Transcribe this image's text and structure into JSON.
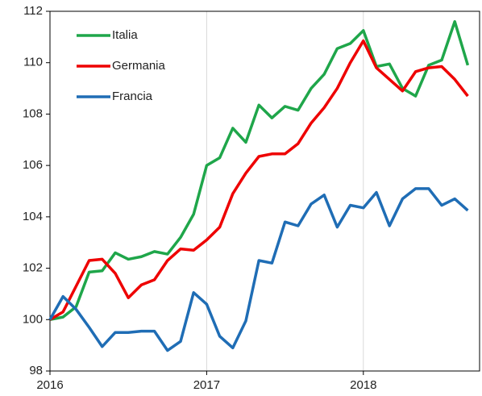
{
  "chart_data": {
    "type": "line",
    "categories": [
      "2016",
      null,
      null,
      null,
      null,
      null,
      null,
      null,
      null,
      null,
      null,
      null,
      "2017",
      null,
      null,
      null,
      null,
      null,
      null,
      null,
      null,
      null,
      null,
      null,
      "2018",
      null,
      null,
      null,
      null,
      null,
      null,
      null,
      null
    ],
    "series": [
      {
        "name": "Italia",
        "color": "#1fa64a",
        "values": [
          100,
          100.1,
          100.5,
          101.85,
          101.9,
          102.6,
          102.35,
          102.45,
          102.65,
          102.55,
          103.2,
          104.1,
          106.0,
          106.3,
          107.45,
          106.9,
          108.35,
          107.85,
          108.3,
          108.15,
          109.0,
          109.55,
          110.55,
          110.75,
          111.25,
          109.85,
          109.95,
          109.0,
          108.7,
          109.9,
          110.1,
          111.6,
          109.9
        ]
      },
      {
        "name": "Germania",
        "color": "#ee0000",
        "values": [
          100,
          100.3,
          101.3,
          102.3,
          102.35,
          101.8,
          100.85,
          101.35,
          101.55,
          102.3,
          102.75,
          102.7,
          103.1,
          103.6,
          104.9,
          105.7,
          106.35,
          106.45,
          106.45,
          106.85,
          107.65,
          108.25,
          109.0,
          110.0,
          110.85,
          109.8,
          109.35,
          108.9,
          109.65,
          109.8,
          109.85,
          109.35,
          108.7
        ]
      },
      {
        "name": "Francia",
        "color": "#1f6db5",
        "values": [
          100,
          100.9,
          100.4,
          99.7,
          98.95,
          99.5,
          99.5,
          99.55,
          99.55,
          98.8,
          99.15,
          101.05,
          100.6,
          99.35,
          98.9,
          99.95,
          102.3,
          102.2,
          103.8,
          103.65,
          104.5,
          104.85,
          103.6,
          104.45,
          104.35,
          104.95,
          103.65,
          104.7,
          105.1,
          105.1,
          104.45,
          104.7,
          104.25
        ]
      }
    ],
    "ylim": [
      98,
      112
    ],
    "yticks": [
      98,
      100,
      102,
      104,
      106,
      108,
      110,
      112
    ],
    "grid": true,
    "legend": "upper left"
  }
}
